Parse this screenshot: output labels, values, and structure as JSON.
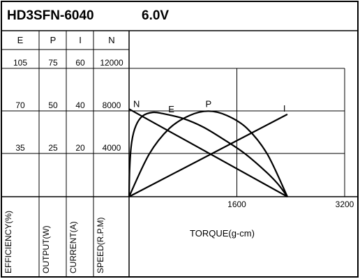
{
  "chart_data": {
    "type": "line",
    "title": "HD3SFN-6040",
    "subtitle": "6.0V",
    "xlabel": "TORQUE(g-cm)",
    "x_ticks": [
      "1600",
      "3200"
    ],
    "xlim": [
      0,
      3200
    ],
    "y_axes": [
      {
        "header": "E",
        "label": "EFFICIENCY(%)",
        "ticks": [
          "35",
          "70",
          "105"
        ],
        "max": 105
      },
      {
        "header": "P",
        "label": "OUTPUT(W)",
        "ticks": [
          "25",
          "50",
          "75"
        ],
        "max": 75
      },
      {
        "header": "I",
        "label": "CURRENT(A)",
        "ticks": [
          "20",
          "40",
          "60"
        ],
        "max": 60
      },
      {
        "header": "N",
        "label": "SPEED(R.P.M)",
        "ticks": [
          "4000",
          "8000",
          "12000"
        ],
        "max": 12000
      }
    ],
    "grid": true,
    "series": [
      {
        "name": "N",
        "axis": 3,
        "points": [
          [
            0,
            8200
          ],
          [
            2350,
            0
          ]
        ]
      },
      {
        "name": "I",
        "axis": 2,
        "points": [
          [
            0,
            0
          ],
          [
            2350,
            38.5
          ]
        ]
      },
      {
        "name": "E",
        "axis": 0,
        "points": [
          [
            0,
            0
          ],
          [
            10,
            25
          ],
          [
            40,
            45
          ],
          [
            100,
            58
          ],
          [
            200,
            66
          ],
          [
            350,
            69
          ],
          [
            500,
            68
          ],
          [
            800,
            64
          ],
          [
            1100,
            57
          ],
          [
            1400,
            47
          ],
          [
            1700,
            36
          ],
          [
            2000,
            22
          ],
          [
            2200,
            11
          ],
          [
            2350,
            0
          ]
        ]
      },
      {
        "name": "P",
        "axis": 1,
        "points": [
          [
            0,
            0
          ],
          [
            300,
            25
          ],
          [
            600,
            40
          ],
          [
            900,
            47.5
          ],
          [
            1175,
            50
          ],
          [
            1450,
            47.5
          ],
          [
            1750,
            40
          ],
          [
            2050,
            25
          ],
          [
            2350,
            0
          ]
        ]
      }
    ]
  }
}
